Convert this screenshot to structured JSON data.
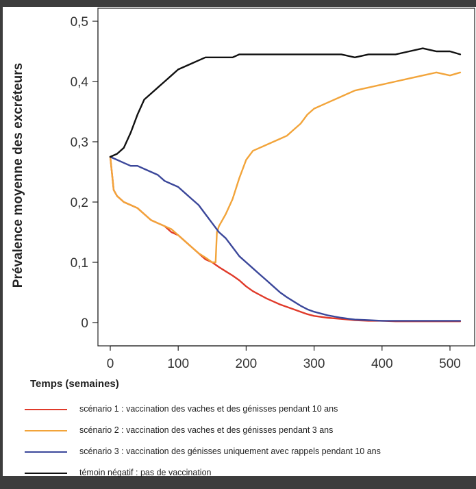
{
  "chart_data": {
    "type": "line",
    "ylabel": "Prévalence moyenne des excréteurs",
    "xlabel": "Temps (semaines)",
    "xlim": [
      0,
      520
    ],
    "ylim": [
      0,
      0.5
    ],
    "xticks": [
      "0",
      "100",
      "200",
      "300",
      "400",
      "500"
    ],
    "yticks": [
      "0",
      "0,1",
      "0,2",
      "0,3",
      "0,4",
      "0,5"
    ],
    "grid": false,
    "legend_position": "bottom",
    "series": [
      {
        "name": "scénario 1 : vaccination des vaches et des génisses pendant 10 ans",
        "color": "#e03a2a",
        "x": [
          0,
          5,
          10,
          20,
          30,
          40,
          50,
          60,
          70,
          80,
          90,
          100,
          110,
          120,
          130,
          140,
          150,
          160,
          170,
          180,
          190,
          200,
          210,
          220,
          230,
          240,
          250,
          260,
          270,
          280,
          290,
          300,
          320,
          340,
          360,
          380,
          400,
          420,
          440,
          460,
          480,
          500,
          515
        ],
        "y": [
          0.275,
          0.22,
          0.21,
          0.2,
          0.195,
          0.19,
          0.18,
          0.17,
          0.165,
          0.16,
          0.15,
          0.145,
          0.135,
          0.125,
          0.115,
          0.105,
          0.1,
          0.092,
          0.085,
          0.078,
          0.07,
          0.06,
          0.052,
          0.046,
          0.04,
          0.035,
          0.03,
          0.026,
          0.022,
          0.018,
          0.014,
          0.011,
          0.008,
          0.006,
          0.004,
          0.003,
          0.003,
          0.002,
          0.002,
          0.002,
          0.002,
          0.002,
          0.002
        ]
      },
      {
        "name": "scénario 2 : vaccination des vaches et des génisses pendant 3 ans",
        "color": "#f2a43a",
        "x": [
          0,
          5,
          10,
          20,
          30,
          40,
          50,
          60,
          70,
          80,
          90,
          100,
          110,
          120,
          130,
          140,
          150,
          155,
          157,
          160,
          170,
          180,
          190,
          200,
          210,
          220,
          230,
          240,
          250,
          260,
          270,
          280,
          290,
          300,
          320,
          340,
          360,
          380,
          400,
          420,
          440,
          460,
          480,
          500,
          515
        ],
        "y": [
          0.275,
          0.22,
          0.21,
          0.2,
          0.195,
          0.19,
          0.18,
          0.17,
          0.165,
          0.16,
          0.155,
          0.145,
          0.135,
          0.125,
          0.115,
          0.108,
          0.1,
          0.1,
          0.15,
          0.16,
          0.18,
          0.205,
          0.24,
          0.27,
          0.285,
          0.29,
          0.295,
          0.3,
          0.305,
          0.31,
          0.32,
          0.33,
          0.345,
          0.355,
          0.365,
          0.375,
          0.385,
          0.39,
          0.395,
          0.4,
          0.405,
          0.41,
          0.415,
          0.41,
          0.415
        ]
      },
      {
        "name": "scénario 3 : vaccination des génisses uniquement avec rappels pendant 10 ans",
        "color": "#3b479a",
        "x": [
          0,
          10,
          20,
          30,
          40,
          50,
          60,
          70,
          80,
          90,
          100,
          110,
          120,
          130,
          140,
          150,
          160,
          170,
          180,
          190,
          200,
          210,
          220,
          230,
          240,
          250,
          260,
          270,
          280,
          290,
          300,
          320,
          340,
          360,
          380,
          400,
          420,
          440,
          460,
          480,
          500,
          515
        ],
        "y": [
          0.275,
          0.27,
          0.265,
          0.26,
          0.26,
          0.255,
          0.25,
          0.245,
          0.235,
          0.23,
          0.225,
          0.215,
          0.205,
          0.195,
          0.18,
          0.165,
          0.15,
          0.14,
          0.125,
          0.11,
          0.1,
          0.09,
          0.08,
          0.07,
          0.06,
          0.05,
          0.042,
          0.035,
          0.028,
          0.022,
          0.018,
          0.012,
          0.008,
          0.005,
          0.004,
          0.003,
          0.003,
          0.003,
          0.003,
          0.003,
          0.003,
          0.003
        ]
      },
      {
        "name": "témoin négatif : pas de vaccination",
        "color": "#111111",
        "x": [
          0,
          10,
          20,
          30,
          40,
          50,
          60,
          70,
          80,
          90,
          100,
          110,
          120,
          130,
          140,
          150,
          160,
          170,
          180,
          190,
          200,
          220,
          240,
          260,
          280,
          300,
          320,
          340,
          360,
          380,
          400,
          420,
          440,
          460,
          480,
          500,
          515
        ],
        "y": [
          0.275,
          0.28,
          0.29,
          0.315,
          0.345,
          0.37,
          0.38,
          0.39,
          0.4,
          0.41,
          0.42,
          0.425,
          0.43,
          0.435,
          0.44,
          0.44,
          0.44,
          0.44,
          0.44,
          0.445,
          0.445,
          0.445,
          0.445,
          0.445,
          0.445,
          0.445,
          0.445,
          0.445,
          0.44,
          0.445,
          0.445,
          0.445,
          0.45,
          0.455,
          0.45,
          0.45,
          0.445
        ]
      }
    ]
  }
}
